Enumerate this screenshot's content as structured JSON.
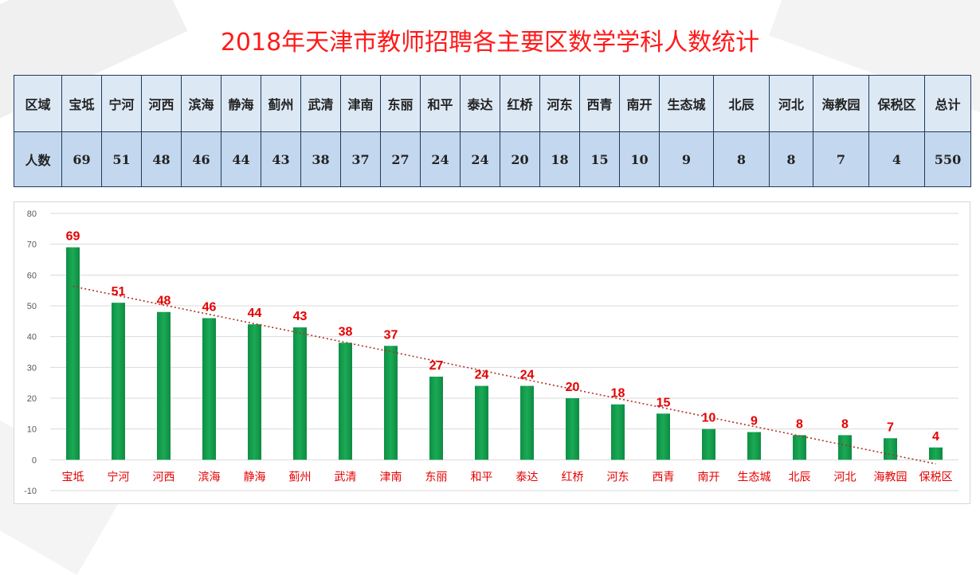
{
  "title": "2018年天津市教师招聘各主要区数学学科人数统计",
  "table": {
    "row1_header": "区域",
    "row2_header": "人数",
    "districts": [
      "宝坻",
      "宁河",
      "河西",
      "滨海",
      "静海",
      "蓟州",
      "武清",
      "津南",
      "东丽",
      "和平",
      "泰达",
      "红桥",
      "河东",
      "西青",
      "南开",
      "生态城",
      "北辰",
      "河北",
      "海教园",
      "保税区"
    ],
    "counts": [
      "69",
      "51",
      "48",
      "46",
      "44",
      "43",
      "38",
      "37",
      "27",
      "24",
      "24",
      "20",
      "18",
      "15",
      "10",
      "9",
      "8",
      "8",
      "7",
      "4"
    ],
    "total_label": "总计",
    "total_value": "550"
  },
  "chart_data": {
    "type": "bar",
    "categories": [
      "宝坻",
      "宁河",
      "河西",
      "滨海",
      "静海",
      "蓟州",
      "武清",
      "津南",
      "东丽",
      "和平",
      "泰达",
      "红桥",
      "河东",
      "西青",
      "南开",
      "生态城",
      "北辰",
      "河北",
      "海教园",
      "保税区"
    ],
    "values": [
      69,
      51,
      48,
      46,
      44,
      43,
      38,
      37,
      27,
      24,
      24,
      20,
      18,
      15,
      10,
      9,
      8,
      8,
      7,
      4
    ],
    "ylim": [
      -10,
      80
    ],
    "yticks": [
      -10,
      0,
      10,
      20,
      30,
      40,
      50,
      60,
      70,
      80
    ],
    "grid": true,
    "trendline": "linear",
    "bar_color": "#1aaa55",
    "label_color": "#e60000",
    "trend_color": "#b03020"
  }
}
